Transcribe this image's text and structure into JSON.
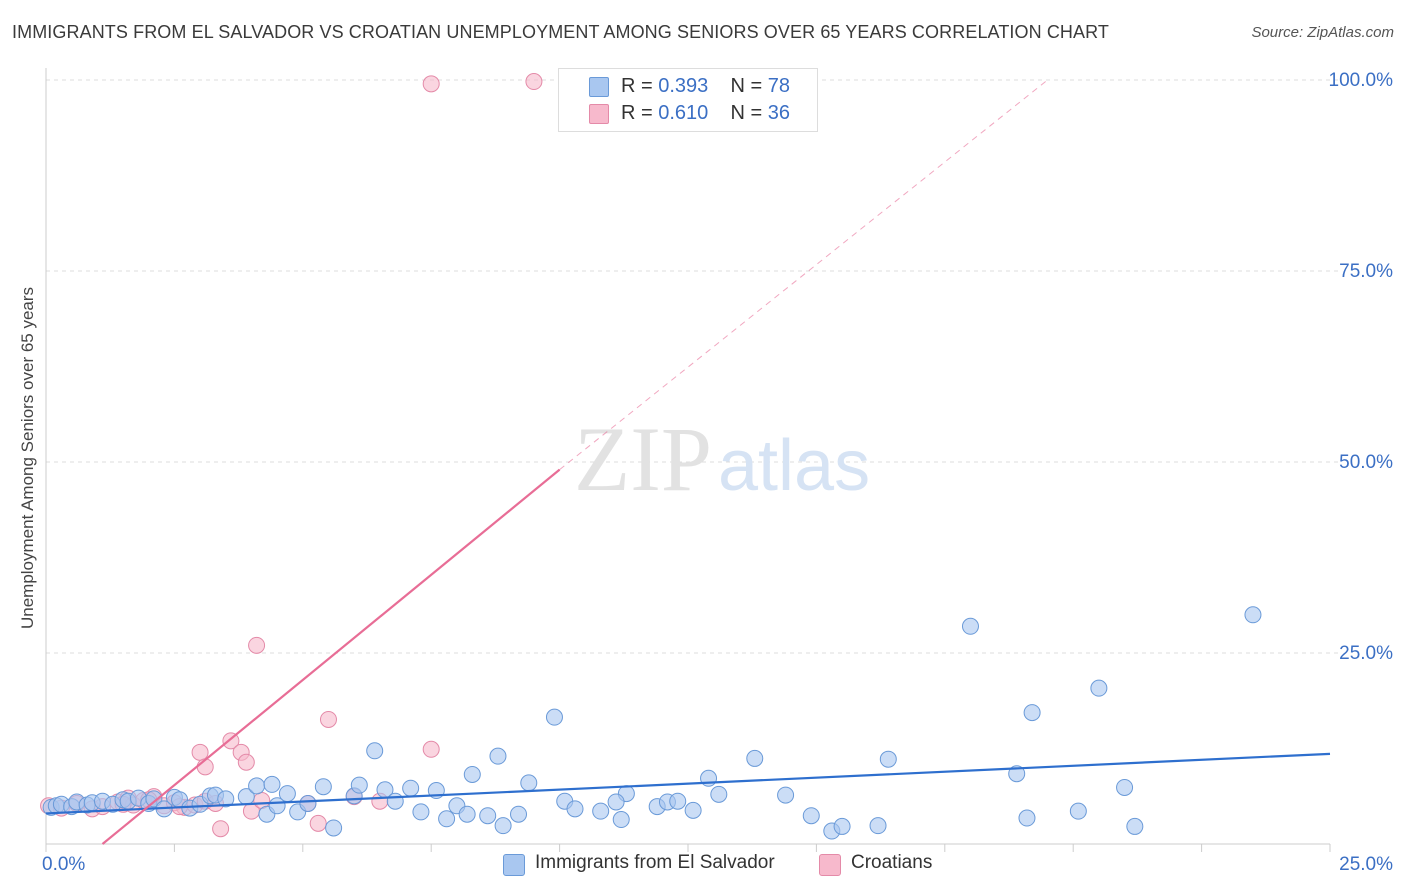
{
  "chart_data": {
    "type": "scatter",
    "title": "IMMIGRANTS FROM EL SALVADOR VS CROATIAN UNEMPLOYMENT AMONG SENIORS OVER 65 YEARS CORRELATION CHART",
    "source": "Source: ZipAtlas.com",
    "xlabel": "",
    "ylabel": "Unemployment Among Seniors over 65 years",
    "xlim": [
      0,
      25
    ],
    "ylim": [
      0,
      100
    ],
    "x_tick_labels": [
      "0.0%",
      "25.0%"
    ],
    "y_ticks": [
      25,
      50,
      75,
      100
    ],
    "y_tick_labels": [
      "25.0%",
      "50.0%",
      "75.0%",
      "100.0%"
    ],
    "grid": true,
    "watermark": "ZIPatlas",
    "legend": {
      "position": "top-center",
      "entries": [
        {
          "series": "Immigrants from El Salvador",
          "r_label": "R = ",
          "r_value": "0.393",
          "n_label": "N = ",
          "n_value": "78",
          "color": "#a9c7f0"
        },
        {
          "series": "Croatians",
          "r_label": "R = ",
          "r_value": "0.610",
          "n_label": "N = ",
          "n_value": "36",
          "color": "#f7b9cc"
        }
      ]
    },
    "series": [
      {
        "name": "Immigrants from El Salvador",
        "fill": "#a9c7f0",
        "stroke": "#6a9ad8",
        "trend_color": "#2e6fce",
        "trend": {
          "x": [
            0,
            25
          ],
          "y": [
            4.0,
            11.8
          ],
          "dashed_extension": false
        },
        "points": [
          [
            0.1,
            4.8
          ],
          [
            0.2,
            5.0
          ],
          [
            0.3,
            5.2
          ],
          [
            0.5,
            4.9
          ],
          [
            0.6,
            5.5
          ],
          [
            0.8,
            5.1
          ],
          [
            0.9,
            5.4
          ],
          [
            1.1,
            5.6
          ],
          [
            1.3,
            5.2
          ],
          [
            1.5,
            5.8
          ],
          [
            1.6,
            5.6
          ],
          [
            1.8,
            6.0
          ],
          [
            2.0,
            5.3
          ],
          [
            2.1,
            5.9
          ],
          [
            2.3,
            4.6
          ],
          [
            2.5,
            6.1
          ],
          [
            2.6,
            5.8
          ],
          [
            2.8,
            4.7
          ],
          [
            3.0,
            5.2
          ],
          [
            3.2,
            6.3
          ],
          [
            3.3,
            6.4
          ],
          [
            3.5,
            5.9
          ],
          [
            3.9,
            6.2
          ],
          [
            4.1,
            7.6
          ],
          [
            4.3,
            3.9
          ],
          [
            4.4,
            7.8
          ],
          [
            4.5,
            5.0
          ],
          [
            4.7,
            6.6
          ],
          [
            4.9,
            4.2
          ],
          [
            5.1,
            5.3
          ],
          [
            5.4,
            7.5
          ],
          [
            5.6,
            2.1
          ],
          [
            6.0,
            6.3
          ],
          [
            6.1,
            7.7
          ],
          [
            6.4,
            12.2
          ],
          [
            6.6,
            7.1
          ],
          [
            6.8,
            5.6
          ],
          [
            7.1,
            7.3
          ],
          [
            7.3,
            4.2
          ],
          [
            7.6,
            7.0
          ],
          [
            7.8,
            3.3
          ],
          [
            8.0,
            5.0
          ],
          [
            8.2,
            3.9
          ],
          [
            8.3,
            9.1
          ],
          [
            8.6,
            3.7
          ],
          [
            8.8,
            11.5
          ],
          [
            8.9,
            2.4
          ],
          [
            9.2,
            3.9
          ],
          [
            9.4,
            8.0
          ],
          [
            9.9,
            16.6
          ],
          [
            10.1,
            5.6
          ],
          [
            10.3,
            4.6
          ],
          [
            10.8,
            4.3
          ],
          [
            11.2,
            3.2
          ],
          [
            11.3,
            6.6
          ],
          [
            11.9,
            4.9
          ],
          [
            12.1,
            5.5
          ],
          [
            12.3,
            5.6
          ],
          [
            12.6,
            4.4
          ],
          [
            12.9,
            8.6
          ],
          [
            13.1,
            6.5
          ],
          [
            13.8,
            11.2
          ],
          [
            14.4,
            6.4
          ],
          [
            14.9,
            3.7
          ],
          [
            15.3,
            1.7
          ],
          [
            15.5,
            2.3
          ],
          [
            16.2,
            2.4
          ],
          [
            16.4,
            11.1
          ],
          [
            18.0,
            28.5
          ],
          [
            18.9,
            9.2
          ],
          [
            19.1,
            3.4
          ],
          [
            19.2,
            17.2
          ],
          [
            20.1,
            4.3
          ],
          [
            20.5,
            20.4
          ],
          [
            21.0,
            7.4
          ],
          [
            21.2,
            2.3
          ],
          [
            23.5,
            30.0
          ],
          [
            11.1,
            5.5
          ]
        ]
      },
      {
        "name": "Croatians",
        "fill": "#f7b9cc",
        "stroke": "#e48aa8",
        "trend_color": "#e86d96",
        "trend": {
          "x": [
            1.1,
            10.0
          ],
          "y": [
            0.0,
            49.0
          ],
          "dashed_extension": true,
          "dashed_to": {
            "x": 19.5,
            "y": 100.0
          }
        },
        "points": [
          [
            0.05,
            5.0
          ],
          [
            0.3,
            4.7
          ],
          [
            0.6,
            5.3
          ],
          [
            0.9,
            4.6
          ],
          [
            1.1,
            4.9
          ],
          [
            1.4,
            5.5
          ],
          [
            1.6,
            6.0
          ],
          [
            1.7,
            5.1
          ],
          [
            1.9,
            5.7
          ],
          [
            2.1,
            6.2
          ],
          [
            2.3,
            5.0
          ],
          [
            2.5,
            5.4
          ],
          [
            2.7,
            4.8
          ],
          [
            2.9,
            5.1
          ],
          [
            3.1,
            5.6
          ],
          [
            3.3,
            5.3
          ],
          [
            3.0,
            12.0
          ],
          [
            3.1,
            10.1
          ],
          [
            3.4,
            2.0
          ],
          [
            3.6,
            13.5
          ],
          [
            3.8,
            12.0
          ],
          [
            3.9,
            10.7
          ],
          [
            4.0,
            4.3
          ],
          [
            4.1,
            26.0
          ],
          [
            4.2,
            5.7
          ],
          [
            5.1,
            5.3
          ],
          [
            5.5,
            16.3
          ],
          [
            6.0,
            6.2
          ],
          [
            6.5,
            5.6
          ],
          [
            7.5,
            12.4
          ],
          [
            7.5,
            99.5
          ],
          [
            9.5,
            99.8
          ],
          [
            2.0,
            5.8
          ],
          [
            1.5,
            5.2
          ],
          [
            2.6,
            4.9
          ],
          [
            5.3,
            2.7
          ]
        ]
      }
    ]
  }
}
